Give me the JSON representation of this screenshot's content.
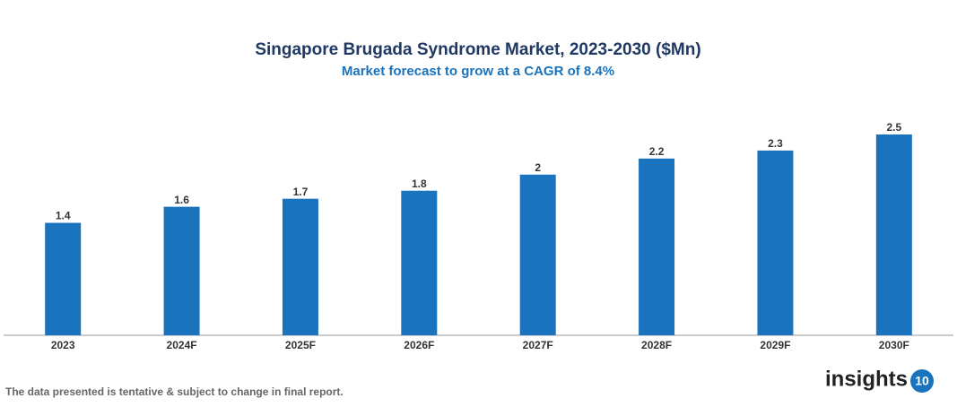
{
  "chart_data": {
    "type": "bar",
    "title": "Singapore Brugada Syndrome Market, 2023-2030 ($Mn)",
    "subtitle": "Market forecast to grow at a CAGR of 8.4%",
    "categories": [
      "2023",
      "2024F",
      "2025F",
      "2026F",
      "2027F",
      "2028F",
      "2029F",
      "2030F"
    ],
    "values": [
      1.4,
      1.6,
      1.7,
      1.8,
      2,
      2.2,
      2.3,
      2.5
    ],
    "color": "#1a73bd",
    "ylim": [
      0,
      2.5
    ]
  },
  "footnote": "The data presented is tentative & subject to change in final report.",
  "logo": {
    "text": "insights",
    "badge": "10"
  }
}
